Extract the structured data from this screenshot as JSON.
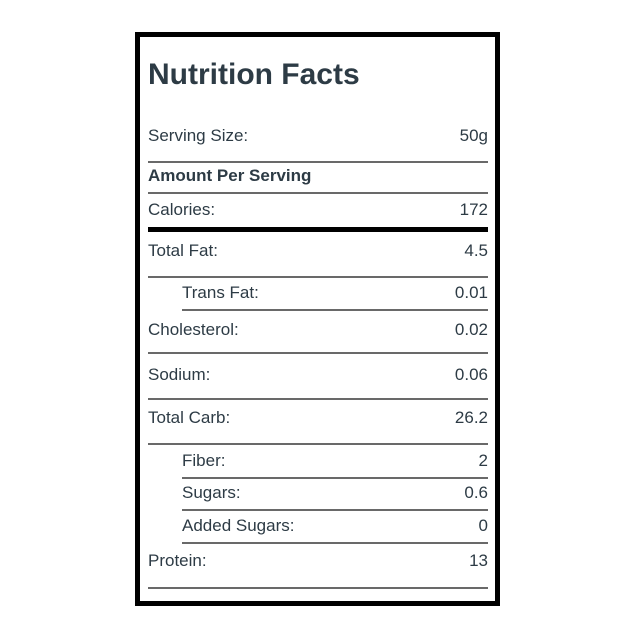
{
  "title": "Nutrition Facts",
  "colors": {
    "text": "#2D3B45",
    "divider": "#696969",
    "heavy_rule": "#000000",
    "background": "#ffffff"
  },
  "rows": [
    {
      "label": "Serving Size:",
      "value": "50g",
      "indent": false,
      "bold": false
    },
    {
      "label": "Amount Per Serving",
      "value": "",
      "indent": false,
      "bold": true
    },
    {
      "label": "Calories:",
      "value": "172",
      "indent": false,
      "bold": false
    },
    {
      "label": "Total Fat:",
      "value": "4.5",
      "indent": false,
      "bold": false
    },
    {
      "label": "Trans Fat:",
      "value": "0.01",
      "indent": true,
      "bold": false
    },
    {
      "label": "Cholesterol:",
      "value": "0.02",
      "indent": false,
      "bold": false
    },
    {
      "label": "Sodium:",
      "value": "0.06",
      "indent": false,
      "bold": false
    },
    {
      "label": "Total Carb:",
      "value": "26.2",
      "indent": false,
      "bold": false
    },
    {
      "label": "Fiber:",
      "value": "2",
      "indent": true,
      "bold": false
    },
    {
      "label": "Sugars:",
      "value": "0.6",
      "indent": true,
      "bold": false
    },
    {
      "label": "Added Sugars:",
      "value": "0",
      "indent": true,
      "bold": false
    },
    {
      "label": "Protein:",
      "value": "13",
      "indent": false,
      "bold": false
    }
  ]
}
